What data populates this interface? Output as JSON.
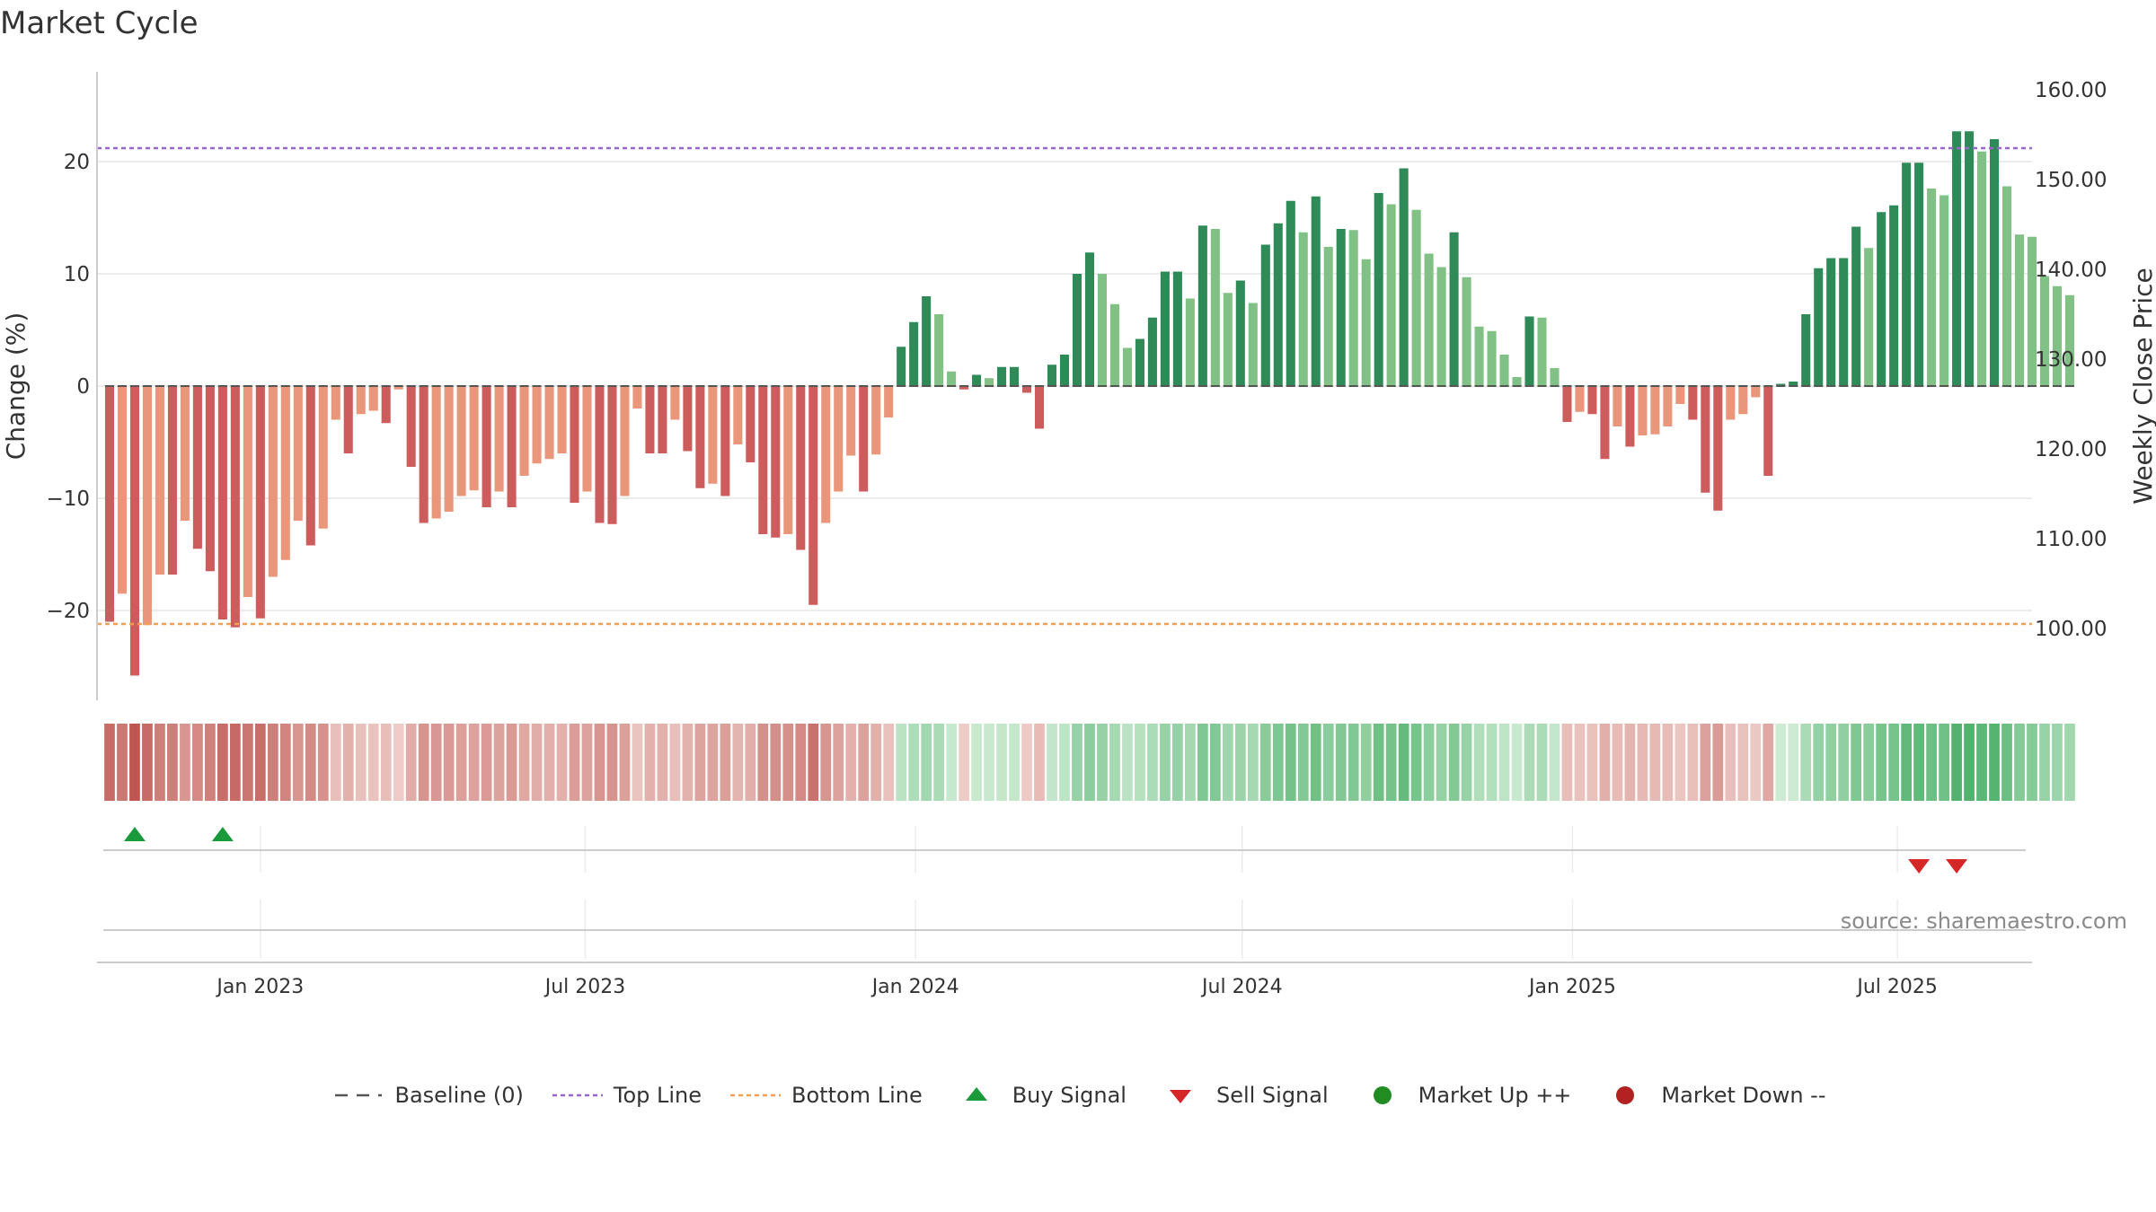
{
  "title": "Market Cycle",
  "source": "source: sharemaestro.com",
  "colors": {
    "up_strong": "#2e8b57",
    "up_light": "#82c185",
    "down_strong": "#cd5c5c",
    "down_light": "#e9967a",
    "top_line": "#9966cc",
    "bottom_line": "#f0a050",
    "baseline": "#555555",
    "buy": "#1a9a3a",
    "sell": "#d62728",
    "market_up": "#228b22",
    "market_down": "#b22222"
  },
  "legend": [
    {
      "key": "baseline",
      "label": "Baseline (0)",
      "icon": "dash-line-icon"
    },
    {
      "key": "top",
      "label": "Top Line",
      "icon": "dotted-line-icon"
    },
    {
      "key": "bottom",
      "label": "Bottom Line",
      "icon": "dotted-line-icon"
    },
    {
      "key": "buy",
      "label": "Buy Signal",
      "icon": "triangle-up-icon"
    },
    {
      "key": "sell",
      "label": "Sell Signal",
      "icon": "triangle-down-icon"
    },
    {
      "key": "up",
      "label": "Market Up ++",
      "icon": "circle-icon"
    },
    {
      "key": "down",
      "label": "Market Down --",
      "icon": "circle-icon"
    }
  ],
  "chart_data": {
    "type": "bar",
    "ylabel": "Change (%)",
    "y2label": "Weekly Close Price",
    "ylim": [
      -28,
      28
    ],
    "yticks": [
      -20,
      -10,
      0,
      10,
      20
    ],
    "y2lim": [
      92,
      162
    ],
    "y2ticks": [
      "100.00",
      "110.00",
      "120.00",
      "130.00",
      "140.00",
      "150.00",
      "160.00"
    ],
    "top_line": 21.2,
    "bottom_line": -21.2,
    "x_start": "2022-10-02",
    "x_end": "2025-09-14",
    "xticks": [
      {
        "label": "Jan 2023",
        "date": "2023-01-01"
      },
      {
        "label": "Jul 2023",
        "date": "2023-07-01"
      },
      {
        "label": "Jan 2024",
        "date": "2024-01-01"
      },
      {
        "label": "Jul 2024",
        "date": "2024-07-01"
      },
      {
        "label": "Jan 2025",
        "date": "2025-01-01"
      },
      {
        "label": "Jul 2025",
        "date": "2025-07-01"
      }
    ],
    "first_week": "2022-10-09",
    "weekly_change": [
      -21,
      -18.5,
      -25.8,
      -21.3,
      -16.8,
      -16.8,
      -12,
      -14.5,
      -16.5,
      -20.8,
      -21.5,
      -18.8,
      -20.7,
      -17,
      -15.5,
      -12,
      -14.2,
      -12.7,
      -3,
      -6,
      -2.5,
      -2.2,
      -3.3,
      -0.3,
      -7.2,
      -12.2,
      -11.8,
      -11.2,
      -9.8,
      -9.3,
      -10.8,
      -9.4,
      -10.8,
      -8,
      -6.9,
      -6.5,
      -6,
      -10.4,
      -9.4,
      -12.2,
      -12.3,
      -9.8,
      -2,
      -6,
      -6,
      -3,
      -5.8,
      -9.1,
      -8.7,
      -9.8,
      -5.2,
      -6.8,
      -13.2,
      -13.5,
      -13.2,
      -14.6,
      -19.5,
      -12.2,
      -9.4,
      -6.2,
      -9.4,
      -6.1,
      -2.8,
      3.5,
      5.7,
      8,
      6.4,
      1.3,
      -0.3,
      1,
      0.7,
      1.7,
      1.7,
      -0.6,
      -3.8,
      1.9,
      2.8,
      10,
      11.9,
      10,
      7.3,
      3.4,
      4.2,
      6.1,
      10.2,
      10.2,
      7.8,
      14.3,
      14,
      8.3,
      9.4,
      7.4,
      12.6,
      14.5,
      16.5,
      13.7,
      16.9,
      12.4,
      14,
      13.9,
      11.3,
      17.2,
      16.2,
      19.4,
      15.7,
      11.8,
      10.6,
      13.7,
      9.7,
      5.3,
      4.9,
      2.8,
      0.8,
      6.2,
      6.1,
      1.6,
      -3.2,
      -2.3,
      -2.5,
      -6.5,
      -3.6,
      -5.4,
      -4.4,
      -4.3,
      -3.6,
      -1.6,
      -3,
      -9.5,
      -11.1,
      -3,
      -2.5,
      -1,
      -8,
      0.2,
      0.4,
      6.4,
      10.5,
      11.4,
      11.4,
      14.2,
      12.3,
      15.5,
      16.1,
      19.9,
      19.9,
      17.6,
      17,
      22.7,
      22.7,
      20.9,
      22,
      17.8,
      13.5,
      13.3,
      9.8,
      8.9,
      8.1
    ],
    "buy_signals": [
      "2022-10-23",
      "2022-12-11"
    ],
    "sell_signals": [
      "2025-07-13",
      "2025-08-03"
    ]
  }
}
